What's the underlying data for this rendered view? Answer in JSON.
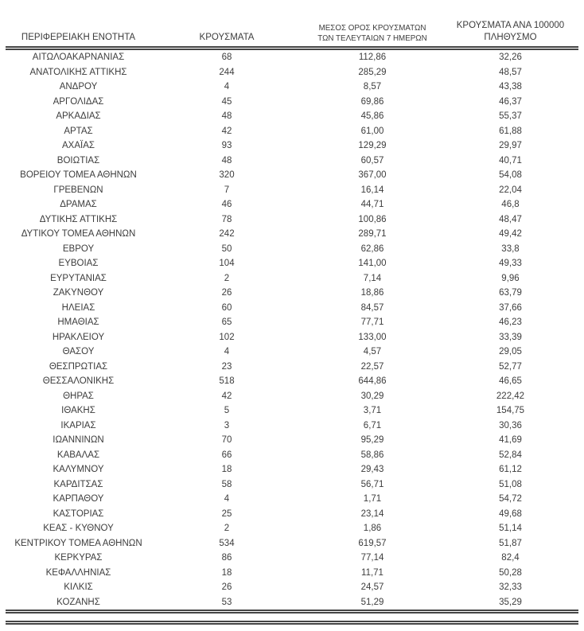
{
  "colors": {
    "text": "#3d3d3d",
    "rule": "#454545",
    "background": "#ffffff"
  },
  "table": {
    "columns": {
      "region": {
        "label": "ΠΕΡΙΦΕΡΕΙΑΚΗ ΕΝΟΤΗΤΑ"
      },
      "cases": {
        "label": "ΚΡΟΥΣΜΑΤΑ"
      },
      "avg_7day": {
        "label_line1": "ΜΕΣΟΣ ΟΡΟΣ ΚΡΟΥΣΜΑΤΩΝ",
        "label_line2": "ΤΩΝ ΤΕΛΕΥΤΑΙΩΝ 7 ΗΜΕΡΩΝ"
      },
      "per_100k": {
        "label_line1": "ΚΡΟΥΣΜΑΤΑ ΑΝΑ 100000",
        "label_line2": "ΠΛΗΘΥΣΜΟ"
      }
    },
    "rows": [
      {
        "region": "ΑΙΤΩΛΟΑΚΑΡΝΑΝΙΑΣ",
        "cases": "68",
        "avg_7day": "112,86",
        "per_100k": "32,26"
      },
      {
        "region": "ΑΝΑΤΟΛΙΚΗΣ ΑΤΤΙΚΗΣ",
        "cases": "244",
        "avg_7day": "285,29",
        "per_100k": "48,57"
      },
      {
        "region": "ΑΝΔΡΟΥ",
        "cases": "4",
        "avg_7day": "8,57",
        "per_100k": "43,38"
      },
      {
        "region": "ΑΡΓΟΛΙΔΑΣ",
        "cases": "45",
        "avg_7day": "69,86",
        "per_100k": "46,37"
      },
      {
        "region": "ΑΡΚΑΔΙΑΣ",
        "cases": "48",
        "avg_7day": "45,86",
        "per_100k": "55,37"
      },
      {
        "region": "ΑΡΤΑΣ",
        "cases": "42",
        "avg_7day": "61,00",
        "per_100k": "61,88"
      },
      {
        "region": "ΑΧΑΪΑΣ",
        "cases": "93",
        "avg_7day": "129,29",
        "per_100k": "29,97"
      },
      {
        "region": "ΒΟΙΩΤΙΑΣ",
        "cases": "48",
        "avg_7day": "60,57",
        "per_100k": "40,71"
      },
      {
        "region": "ΒΟΡΕΙΟΥ ΤΟΜΕΑ ΑΘΗΝΩΝ",
        "cases": "320",
        "avg_7day": "367,00",
        "per_100k": "54,08"
      },
      {
        "region": "ΓΡΕΒΕΝΩΝ",
        "cases": "7",
        "avg_7day": "16,14",
        "per_100k": "22,04"
      },
      {
        "region": "ΔΡΑΜΑΣ",
        "cases": "46",
        "avg_7day": "44,71",
        "per_100k": "46,8"
      },
      {
        "region": "ΔΥΤΙΚΗΣ ΑΤΤΙΚΗΣ",
        "cases": "78",
        "avg_7day": "100,86",
        "per_100k": "48,47"
      },
      {
        "region": "ΔΥΤΙΚΟΥ ΤΟΜΕΑ ΑΘΗΝΩΝ",
        "cases": "242",
        "avg_7day": "289,71",
        "per_100k": "49,42"
      },
      {
        "region": "ΕΒΡΟΥ",
        "cases": "50",
        "avg_7day": "62,86",
        "per_100k": "33,8"
      },
      {
        "region": "ΕΥΒΟΙΑΣ",
        "cases": "104",
        "avg_7day": "141,00",
        "per_100k": "49,33"
      },
      {
        "region": "ΕΥΡΥΤΑΝΙΑΣ",
        "cases": "2",
        "avg_7day": "7,14",
        "per_100k": "9,96"
      },
      {
        "region": "ΖΑΚΥΝΘΟΥ",
        "cases": "26",
        "avg_7day": "18,86",
        "per_100k": "63,79"
      },
      {
        "region": "ΗΛΕΙΑΣ",
        "cases": "60",
        "avg_7day": "84,57",
        "per_100k": "37,66"
      },
      {
        "region": "ΗΜΑΘΙΑΣ",
        "cases": "65",
        "avg_7day": "77,71",
        "per_100k": "46,23"
      },
      {
        "region": "ΗΡΑΚΛΕΙΟΥ",
        "cases": "102",
        "avg_7day": "133,00",
        "per_100k": "33,39"
      },
      {
        "region": "ΘΑΣΟΥ",
        "cases": "4",
        "avg_7day": "4,57",
        "per_100k": "29,05"
      },
      {
        "region": "ΘΕΣΠΡΩΤΙΑΣ",
        "cases": "23",
        "avg_7day": "22,57",
        "per_100k": "52,77"
      },
      {
        "region": "ΘΕΣΣΑΛΟΝΙΚΗΣ",
        "cases": "518",
        "avg_7day": "644,86",
        "per_100k": "46,65"
      },
      {
        "region": "ΘΗΡΑΣ",
        "cases": "42",
        "avg_7day": "30,29",
        "per_100k": "222,42"
      },
      {
        "region": "ΙΘΑΚΗΣ",
        "cases": "5",
        "avg_7day": "3,71",
        "per_100k": "154,75"
      },
      {
        "region": "ΙΚΑΡΙΑΣ",
        "cases": "3",
        "avg_7day": "6,71",
        "per_100k": "30,36"
      },
      {
        "region": "ΙΩΑΝΝΙΝΩΝ",
        "cases": "70",
        "avg_7day": "95,29",
        "per_100k": "41,69"
      },
      {
        "region": "ΚΑΒΑΛΑΣ",
        "cases": "66",
        "avg_7day": "58,86",
        "per_100k": "52,84"
      },
      {
        "region": "ΚΑΛΥΜΝΟΥ",
        "cases": "18",
        "avg_7day": "29,43",
        "per_100k": "61,12"
      },
      {
        "region": "ΚΑΡΔΙΤΣΑΣ",
        "cases": "58",
        "avg_7day": "56,71",
        "per_100k": "51,08"
      },
      {
        "region": "ΚΑΡΠΑΘΟΥ",
        "cases": "4",
        "avg_7day": "1,71",
        "per_100k": "54,72"
      },
      {
        "region": "ΚΑΣΤΟΡΙΑΣ",
        "cases": "25",
        "avg_7day": "23,14",
        "per_100k": "49,68"
      },
      {
        "region": "ΚΕΑΣ - ΚΥΘΝΟΥ",
        "cases": "2",
        "avg_7day": "1,86",
        "per_100k": "51,14"
      },
      {
        "region": "ΚΕΝΤΡΙΚΟΥ ΤΟΜΕΑ ΑΘΗΝΩΝ",
        "cases": "534",
        "avg_7day": "619,57",
        "per_100k": "51,87"
      },
      {
        "region": "ΚΕΡΚΥΡΑΣ",
        "cases": "86",
        "avg_7day": "77,14",
        "per_100k": "82,4"
      },
      {
        "region": "ΚΕΦΑΛΛΗΝΙΑΣ",
        "cases": "18",
        "avg_7day": "11,71",
        "per_100k": "50,28"
      },
      {
        "region": "ΚΙΛΚΙΣ",
        "cases": "26",
        "avg_7day": "24,57",
        "per_100k": "32,33"
      },
      {
        "region": "ΚΟΖΑΝΗΣ",
        "cases": "53",
        "avg_7day": "51,29",
        "per_100k": "35,29"
      }
    ]
  }
}
